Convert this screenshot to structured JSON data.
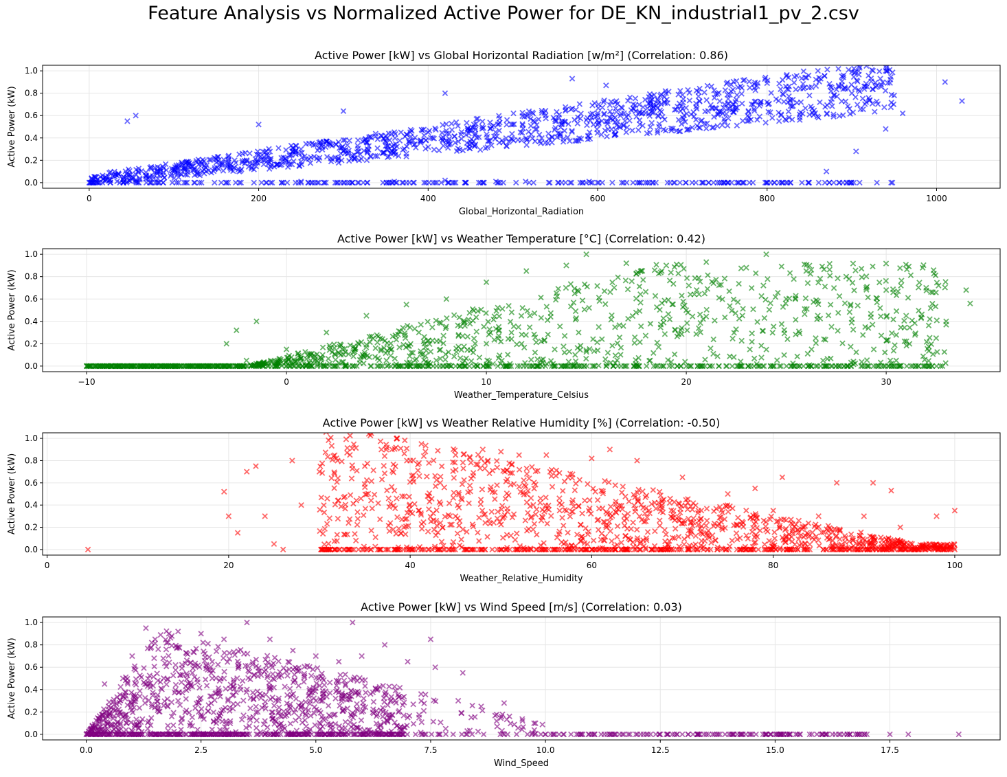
{
  "title": "Feature Analysis vs Normalized Active Power for DE_KN_industrial1_pv_2.csv",
  "chart_data": [
    {
      "type": "scatter",
      "title": "Active Power [kW] vs Global Horizontal Radiation [w/m²] (Correlation: 0.86)",
      "xlabel": "Global_Horizontal_Radiation",
      "ylabel": "Active Power (kW)",
      "xlim": [
        -55,
        1075
      ],
      "ylim": [
        -0.05,
        1.05
      ],
      "xticks": [
        0,
        200,
        400,
        600,
        800,
        1000
      ],
      "xtick_labels": [
        "0",
        "200",
        "400",
        "600",
        "800",
        "1000"
      ],
      "yticks": [
        0.0,
        0.2,
        0.4,
        0.6,
        0.8,
        1.0
      ],
      "ytick_labels": [
        "0.0",
        "0.2",
        "0.4",
        "0.6",
        "0.8",
        "1.0"
      ],
      "grid": true,
      "color": "#0000ff",
      "marker": "x",
      "points": [
        [
          0,
          0
        ],
        [
          20,
          0.02
        ],
        [
          50,
          0.05
        ],
        [
          80,
          0.1
        ],
        [
          100,
          0.12
        ],
        [
          150,
          0.18
        ],
        [
          200,
          0.25
        ],
        [
          250,
          0.3
        ],
        [
          300,
          0.38
        ],
        [
          350,
          0.42
        ],
        [
          400,
          0.45
        ],
        [
          450,
          0.48
        ],
        [
          500,
          0.52
        ],
        [
          550,
          0.55
        ],
        [
          600,
          0.6
        ],
        [
          650,
          0.63
        ],
        [
          700,
          0.66
        ],
        [
          750,
          0.7
        ],
        [
          800,
          0.72
        ],
        [
          850,
          0.78
        ],
        [
          900,
          0.8
        ],
        [
          950,
          0.78
        ],
        [
          45,
          0.55
        ],
        [
          55,
          0.6
        ],
        [
          200,
          0.52
        ],
        [
          300,
          0.64
        ],
        [
          420,
          0.8
        ],
        [
          570,
          0.93
        ],
        [
          610,
          0.87
        ],
        [
          860,
          1.0
        ],
        [
          940,
          1.0
        ],
        [
          1010,
          0.9
        ],
        [
          1030,
          0.73
        ],
        [
          870,
          0.1
        ],
        [
          905,
          0.28
        ],
        [
          940,
          0.48
        ],
        [
          960,
          0.62
        ],
        [
          515,
          0.01
        ],
        [
          590,
          0.01
        ],
        [
          360,
          0.01
        ],
        [
          480,
          0.01
        ],
        [
          420,
          0.02
        ],
        [
          250,
          0.01
        ],
        [
          680,
          0.82
        ],
        [
          800,
          0.89
        ]
      ]
    },
    {
      "type": "scatter",
      "title": "Active Power [kW] vs Weather Temperature [°C] (Correlation: 0.42)",
      "xlabel": "Weather_Temperature_Celsius",
      "ylabel": "Active Power (kW)",
      "xlim": [
        -12.2,
        35.7
      ],
      "ylim": [
        -0.05,
        1.05
      ],
      "xticks": [
        -10,
        0,
        10,
        20,
        30
      ],
      "xtick_labels": [
        "−10",
        "0",
        "10",
        "20",
        "30"
      ],
      "yticks": [
        0.0,
        0.2,
        0.4,
        0.6,
        0.8,
        1.0
      ],
      "ytick_labels": [
        "0.0",
        "0.2",
        "0.4",
        "0.6",
        "0.8",
        "1.0"
      ],
      "grid": true,
      "color": "#008000",
      "marker": "x",
      "points": [
        [
          -10,
          0
        ],
        [
          -8,
          0
        ],
        [
          -6,
          0
        ],
        [
          -4,
          0
        ],
        [
          -2,
          0.05
        ],
        [
          -1.5,
          0.4
        ],
        [
          0,
          0.15
        ],
        [
          2,
          0.3
        ],
        [
          4,
          0.45
        ],
        [
          6,
          0.55
        ],
        [
          8,
          0.6
        ],
        [
          10,
          0.75
        ],
        [
          12,
          0.85
        ],
        [
          14,
          0.9
        ],
        [
          15,
          1.0
        ],
        [
          17,
          0.92
        ],
        [
          19,
          0.9
        ],
        [
          21,
          0.93
        ],
        [
          23,
          0.88
        ],
        [
          24,
          1.0
        ],
        [
          26,
          0.85
        ],
        [
          28,
          0.8
        ],
        [
          29,
          0.7
        ],
        [
          30,
          0.68
        ],
        [
          31,
          0.45
        ],
        [
          32,
          0.7
        ],
        [
          33,
          0.4
        ],
        [
          34,
          0.68
        ],
        [
          34.2,
          0.56
        ],
        [
          33,
          0.37
        ],
        [
          32.5,
          0.25
        ],
        [
          27,
          0.0
        ],
        [
          30.5,
          0.05
        ],
        [
          -3,
          0.2
        ],
        [
          -2.5,
          0.32
        ],
        [
          5,
          0.05
        ],
        [
          10,
          0.2
        ],
        [
          20,
          0.5
        ],
        [
          25,
          0.6
        ]
      ]
    },
    {
      "type": "scatter",
      "title": "Active Power [kW] vs Weather Relative Humidity [%] (Correlation: -0.50)",
      "xlabel": "Weather_Relative_Humidity",
      "ylabel": "Active Power (kW)",
      "xlim": [
        -0.5,
        105
      ],
      "ylim": [
        -0.05,
        1.05
      ],
      "xticks": [
        0,
        20,
        40,
        60,
        80,
        100
      ],
      "xtick_labels": [
        "0",
        "20",
        "40",
        "60",
        "80",
        "100"
      ],
      "yticks": [
        0.0,
        0.2,
        0.4,
        0.6,
        0.8,
        1.0
      ],
      "ytick_labels": [
        "0.0",
        "0.2",
        "0.4",
        "0.6",
        "0.8",
        "1.0"
      ],
      "grid": true,
      "color": "#ff0000",
      "marker": "x",
      "points": [
        [
          4.5,
          0
        ],
        [
          19.5,
          0.52
        ],
        [
          20,
          0.3
        ],
        [
          21,
          0.15
        ],
        [
          22,
          0.7
        ],
        [
          23,
          0.75
        ],
        [
          24,
          0.3
        ],
        [
          25,
          0.05
        ],
        [
          26,
          0.0
        ],
        [
          27,
          0.8
        ],
        [
          28,
          0.4
        ],
        [
          30,
          0.7
        ],
        [
          32,
          0.8
        ],
        [
          35,
          0.75
        ],
        [
          38,
          0.9
        ],
        [
          38.5,
          1.0
        ],
        [
          40,
          0.8
        ],
        [
          45,
          0.85
        ],
        [
          48,
          0.9
        ],
        [
          50,
          0.88
        ],
        [
          52,
          0.85
        ],
        [
          55,
          0.85
        ],
        [
          60,
          0.82
        ],
        [
          62,
          0.9
        ],
        [
          65,
          0.8
        ],
        [
          70,
          0.65
        ],
        [
          75,
          0.5
        ],
        [
          78,
          0.55
        ],
        [
          80,
          0.35
        ],
        [
          85,
          0.3
        ],
        [
          90,
          0.3
        ],
        [
          94,
          0.2
        ],
        [
          98,
          0.3
        ],
        [
          100,
          0.35
        ],
        [
          100,
          0.0
        ],
        [
          80,
          0.02
        ],
        [
          60,
          0.0
        ],
        [
          40,
          0.01
        ],
        [
          87,
          0.6
        ],
        [
          91,
          0.6
        ],
        [
          93,
          0.53
        ],
        [
          81,
          0.65
        ],
        [
          59,
          0.1
        ],
        [
          45,
          0.3
        ]
      ]
    },
    {
      "type": "scatter",
      "title": "Active Power [kW] vs Wind Speed [m/s] (Correlation: 0.03)",
      "xlabel": "Wind_Speed",
      "ylabel": "Active Power (kW)",
      "xlim": [
        -0.95,
        19.9
      ],
      "ylim": [
        -0.05,
        1.05
      ],
      "xticks": [
        0,
        2.5,
        5,
        7.5,
        10,
        12.5,
        15,
        17.5
      ],
      "xtick_labels": [
        "0.0",
        "2.5",
        "5.0",
        "7.5",
        "10.0",
        "12.5",
        "15.0",
        "17.5"
      ],
      "yticks": [
        0.0,
        0.2,
        0.4,
        0.6,
        0.8,
        1.0
      ],
      "ytick_labels": [
        "0.0",
        "0.2",
        "0.4",
        "0.6",
        "0.8",
        "1.0"
      ],
      "grid": true,
      "color": "#800080",
      "marker": "x",
      "points": [
        [
          0,
          0
        ],
        [
          0.4,
          0.45
        ],
        [
          0.8,
          0.5
        ],
        [
          1.0,
          0.7
        ],
        [
          1.3,
          0.95
        ],
        [
          1.5,
          0.85
        ],
        [
          1.8,
          0.9
        ],
        [
          2.0,
          0.92
        ],
        [
          2.5,
          0.9
        ],
        [
          3.0,
          0.85
        ],
        [
          3.5,
          1.0
        ],
        [
          4.0,
          0.85
        ],
        [
          4.5,
          0.75
        ],
        [
          5.0,
          0.7
        ],
        [
          5.5,
          0.65
        ],
        [
          5.8,
          1.0
        ],
        [
          6.0,
          0.7
        ],
        [
          6.5,
          0.8
        ],
        [
          7.0,
          0.65
        ],
        [
          7.5,
          0.85
        ],
        [
          7.6,
          0.6
        ],
        [
          8.1,
          0.3
        ],
        [
          8.2,
          0.55
        ],
        [
          8.6,
          0.25
        ],
        [
          9.1,
          0.28
        ],
        [
          9.5,
          0.12
        ],
        [
          10,
          0
        ],
        [
          11,
          0
        ],
        [
          12,
          0
        ],
        [
          12.5,
          0
        ],
        [
          13.5,
          0
        ],
        [
          14.3,
          0
        ],
        [
          15,
          0
        ],
        [
          15.8,
          0
        ],
        [
          16.5,
          0
        ],
        [
          17.0,
          0
        ],
        [
          17.5,
          0
        ],
        [
          17.9,
          0
        ],
        [
          19.0,
          0
        ],
        [
          2.0,
          0.3
        ],
        [
          3.0,
          0.5
        ],
        [
          4.0,
          0.4
        ],
        [
          5.0,
          0.3
        ],
        [
          6.0,
          0.2
        ],
        [
          7.0,
          0.15
        ]
      ]
    }
  ]
}
